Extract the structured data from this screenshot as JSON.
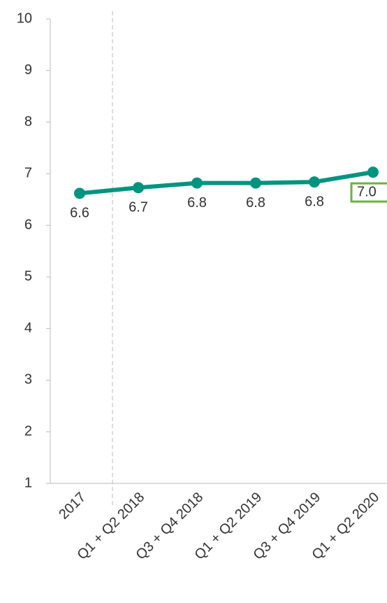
{
  "chart_data": {
    "type": "line",
    "categories": [
      "2017",
      "Q1 + Q2 2018",
      "Q3 + Q4 2018",
      "Q1 + Q2 2019",
      "Q3 + Q4 2019",
      "Q1 + Q2 2020"
    ],
    "series": [
      {
        "color": "#009480",
        "values": [
          6.62,
          6.73,
          6.82,
          6.82,
          6.84,
          7.03
        ]
      }
    ],
    "value_labels": [
      "6.6",
      "6.7",
      "6.8",
      "6.8",
      "6.8",
      "7.0"
    ],
    "ylim": [
      1,
      10
    ],
    "yticks": [
      1,
      2,
      3,
      4,
      5,
      6,
      7,
      8,
      9,
      10
    ]
  }
}
